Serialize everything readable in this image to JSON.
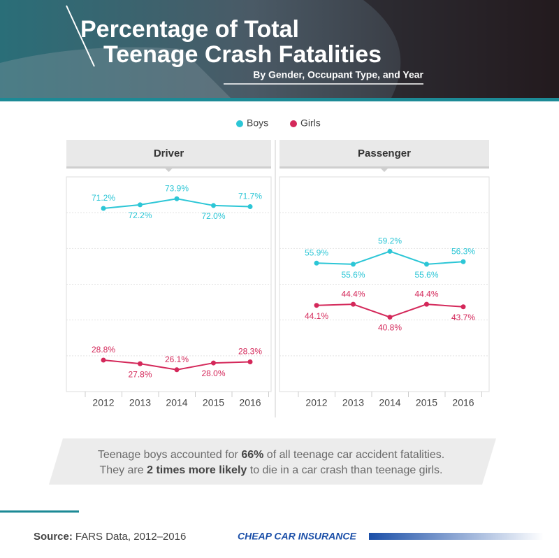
{
  "header": {
    "title": [
      "Percentage of Total",
      "Teenage Crash Fatalities"
    ],
    "subtitle": "By Gender, Occupant Type, and Year"
  },
  "chart_data": [
    {
      "type": "line",
      "title": "Driver",
      "categories": [
        "2012",
        "2013",
        "2014",
        "2015",
        "2016"
      ],
      "series": [
        {
          "name": "Boys",
          "color": "#2cc6d6",
          "values": [
            71.2,
            72.2,
            73.9,
            72.0,
            71.7
          ],
          "value_labels": [
            "71.2%",
            "72.2%",
            "73.9%",
            "72.0%",
            "71.7%"
          ],
          "label_positions": [
            "above",
            "below",
            "above",
            "below",
            "above"
          ]
        },
        {
          "name": "Girls",
          "color": "#d4285a",
          "values": [
            28.8,
            27.8,
            26.1,
            28.0,
            28.3
          ],
          "value_labels": [
            "28.8%",
            "27.8%",
            "26.1%",
            "28.0%",
            "28.3%"
          ],
          "label_positions": [
            "above",
            "below",
            "above",
            "below",
            "above"
          ]
        }
      ],
      "ylim": [
        20,
        80
      ],
      "yticks": [
        30,
        40,
        50,
        60,
        70
      ],
      "grid": true
    },
    {
      "type": "line",
      "title": "Passenger",
      "categories": [
        "2012",
        "2013",
        "2014",
        "2015",
        "2016"
      ],
      "series": [
        {
          "name": "Boys",
          "color": "#2cc6d6",
          "values": [
            55.9,
            55.6,
            59.2,
            55.6,
            56.3
          ],
          "value_labels": [
            "55.9%",
            "55.6%",
            "59.2%",
            "55.6%",
            "56.3%"
          ],
          "label_positions": [
            "above",
            "below",
            "above",
            "below",
            "above"
          ]
        },
        {
          "name": "Girls",
          "color": "#d4285a",
          "values": [
            44.1,
            44.4,
            40.8,
            44.4,
            43.7
          ],
          "value_labels": [
            "44.1%",
            "44.4%",
            "40.8%",
            "44.4%",
            "43.7%"
          ],
          "label_positions": [
            "below",
            "above",
            "below",
            "above",
            "below"
          ]
        }
      ],
      "ylim": [
        20,
        80
      ],
      "yticks": [
        30,
        40,
        50,
        60,
        70
      ],
      "grid": true
    }
  ],
  "note": [
    [
      "Teenage boys accounted for ",
      "66%",
      " of all teenage car accident fatalities."
    ],
    [
      "They are ",
      "2 times more likely",
      " to die in a car crash than teenage girls."
    ]
  ],
  "source": {
    "label": "Source:",
    "text": "FARS Data, 2012–2016"
  },
  "logo": "CHEAP CAR INSURANCE"
}
